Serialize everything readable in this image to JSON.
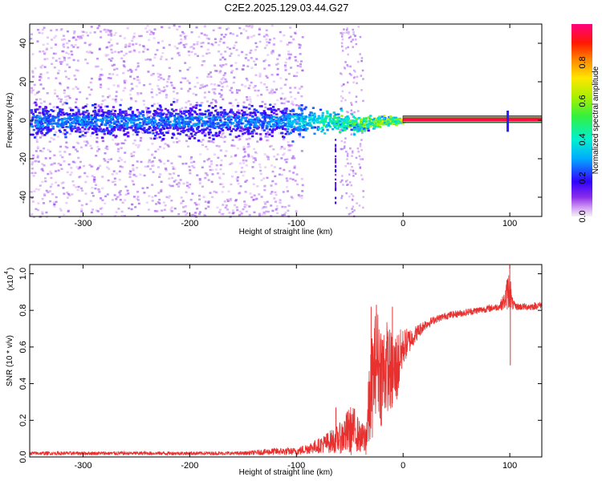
{
  "title": "C2E2.2025.129.03.44.G27",
  "chart_data": [
    {
      "type": "heatmap",
      "xlabel": "Height of straight line (km)",
      "ylabel": "Frequency (Hz)",
      "xlim": [
        -350,
        130
      ],
      "ylim": [
        -50,
        50
      ],
      "xticks": [
        -300,
        -200,
        -100,
        0,
        100
      ],
      "yticks": [
        -40,
        -20,
        0,
        20,
        40
      ],
      "colorbar": {
        "label": "Normalized spectral amplitude",
        "range": [
          0,
          1
        ],
        "ticks": [
          0.0,
          0.2,
          0.4,
          0.6,
          0.8
        ]
      },
      "description_points": {
        "noise_region_x": [
          -350,
          -100
        ],
        "dense_band_halfwidth_hz": 8,
        "converging_region_x": [
          -100,
          0
        ],
        "steady_line_x": [
          0,
          130
        ],
        "steady_line_freq_hz": 0.5,
        "steady_line_amplitude": 0.95
      }
    },
    {
      "type": "line",
      "xlabel": "Height of straight line (km)",
      "ylabel": "SNR (10 * v/v)",
      "yscale_label": "(x10",
      "yscale_exp": "4",
      "xlim": [
        -350,
        130
      ],
      "ylim": [
        0,
        1.05
      ],
      "xticks": [
        -300,
        -200,
        -100,
        0,
        100
      ],
      "yticks": [
        0.0,
        0.2,
        0.4,
        0.6,
        0.8,
        1.0
      ],
      "series": [
        {
          "color": "#e8302f",
          "x": [
            -350,
            -300,
            -250,
            -200,
            -150,
            -120,
            -100,
            -80,
            -60,
            -50,
            -45,
            -40,
            -35,
            -30,
            -25,
            -20,
            -15,
            -10,
            -5,
            0,
            10,
            20,
            30,
            40,
            50,
            60,
            70,
            80,
            90,
            95,
            98,
            100,
            102,
            105,
            110,
            120,
            130
          ],
          "values": [
            0.02,
            0.02,
            0.02,
            0.02,
            0.02,
            0.03,
            0.03,
            0.06,
            0.1,
            0.14,
            0.15,
            0.1,
            0.1,
            0.35,
            0.55,
            0.45,
            0.5,
            0.45,
            0.5,
            0.6,
            0.66,
            0.72,
            0.75,
            0.77,
            0.78,
            0.79,
            0.8,
            0.81,
            0.82,
            0.85,
            0.9,
            0.92,
            0.84,
            0.82,
            0.82,
            0.82,
            0.83
          ],
          "noise_amplitude": [
            0.01,
            0.01,
            0.01,
            0.01,
            0.01,
            0.02,
            0.02,
            0.04,
            0.08,
            0.14,
            0.12,
            0.08,
            0.1,
            0.3,
            0.28,
            0.3,
            0.25,
            0.22,
            0.2,
            0.1,
            0.05,
            0.03,
            0.02,
            0.02,
            0.02,
            0.02,
            0.02,
            0.02,
            0.02,
            0.05,
            0.1,
            0.12,
            0.04,
            0.02,
            0.02,
            0.02,
            0.02
          ],
          "spikes": [
            {
              "x": 100,
              "y": 1.05
            },
            {
              "x": 100.5,
              "y": 0.5
            },
            {
              "x": -30,
              "y": 0.82
            },
            {
              "x": -25,
              "y": 0.83
            },
            {
              "x": -10,
              "y": 0.82
            },
            {
              "x": -63,
              "y": 0.27
            }
          ]
        }
      ]
    }
  ]
}
